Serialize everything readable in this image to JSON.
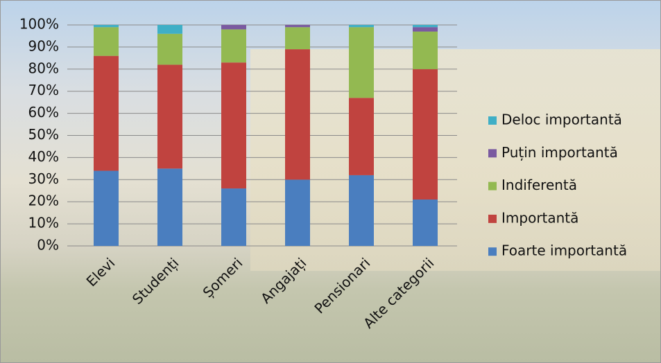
{
  "chart_data": {
    "type": "stacked_bar",
    "categories": [
      "Elevi",
      "Studenți",
      "Șomeri",
      "Angajați",
      "Pensionari",
      "Alte categorii"
    ],
    "series": [
      {
        "name": "Foarte importantă",
        "color": "#4a7ebf",
        "values": [
          34,
          35,
          26,
          30,
          32,
          21
        ]
      },
      {
        "name": "Importantă",
        "color": "#c0433f",
        "values": [
          52,
          47,
          57,
          59,
          35,
          59
        ]
      },
      {
        "name": "Indiferentă",
        "color": "#93b951",
        "values": [
          13,
          14,
          15,
          10,
          32,
          17
        ]
      },
      {
        "name": "Puțin importantă",
        "color": "#7a5aa0",
        "values": [
          0,
          0,
          2,
          1,
          0,
          2
        ]
      },
      {
        "name": "Deloc importantă",
        "color": "#3fafc6",
        "values": [
          1,
          4,
          0,
          0,
          1,
          1
        ]
      }
    ],
    "ylim": [
      0,
      100
    ],
    "yticks": [
      {
        "value": 0,
        "label": "0%"
      },
      {
        "value": 10,
        "label": "10%"
      },
      {
        "value": 20,
        "label": "20%"
      },
      {
        "value": 30,
        "label": "30%"
      },
      {
        "value": 40,
        "label": "40%"
      },
      {
        "value": 50,
        "label": "50%"
      },
      {
        "value": 60,
        "label": "60%"
      },
      {
        "value": 70,
        "label": "70%"
      },
      {
        "value": 80,
        "label": "80%"
      },
      {
        "value": 90,
        "label": "90%"
      },
      {
        "value": 100,
        "label": "100%"
      }
    ],
    "grid": true,
    "legend": "right"
  }
}
